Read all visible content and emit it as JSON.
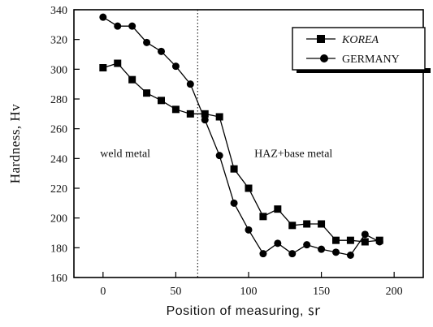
{
  "chart_data": {
    "type": "line",
    "xlabel": "Position of measuring, ㏛",
    "ylabel": "Hardness, Hv",
    "xlim": [
      -20,
      220
    ],
    "ylim": [
      160,
      340
    ],
    "x_ticks": [
      0,
      50,
      100,
      150,
      200
    ],
    "y_ticks": [
      160,
      180,
      200,
      220,
      240,
      260,
      280,
      300,
      320,
      340
    ],
    "grid": false,
    "legend_position": "top-right",
    "divider_x": 65,
    "annotations": [
      {
        "text": "weld metal",
        "x": -2,
        "y": 241
      },
      {
        "text": "HAZ+base metal",
        "x": 104,
        "y": 241
      }
    ],
    "series": [
      {
        "name": "KOREA",
        "marker": "square",
        "x": [
          0,
          10,
          20,
          30,
          40,
          50,
          60,
          70,
          80,
          90,
          100,
          110,
          120,
          130,
          140,
          150,
          160,
          170,
          180,
          190
        ],
        "values": [
          301,
          304,
          293,
          284,
          279,
          273,
          270,
          270,
          268,
          233,
          220,
          201,
          206,
          195,
          196,
          196,
          185,
          185,
          184,
          185
        ]
      },
      {
        "name": "GERMANY",
        "marker": "circle",
        "x": [
          0,
          10,
          20,
          30,
          40,
          50,
          60,
          70,
          80,
          90,
          100,
          110,
          120,
          130,
          140,
          150,
          160,
          170,
          180,
          190
        ],
        "values": [
          335,
          329,
          329,
          318,
          312,
          302,
          290,
          266,
          242,
          210,
          192,
          176,
          183,
          176,
          182,
          179,
          177,
          175,
          189,
          184
        ]
      }
    ]
  }
}
